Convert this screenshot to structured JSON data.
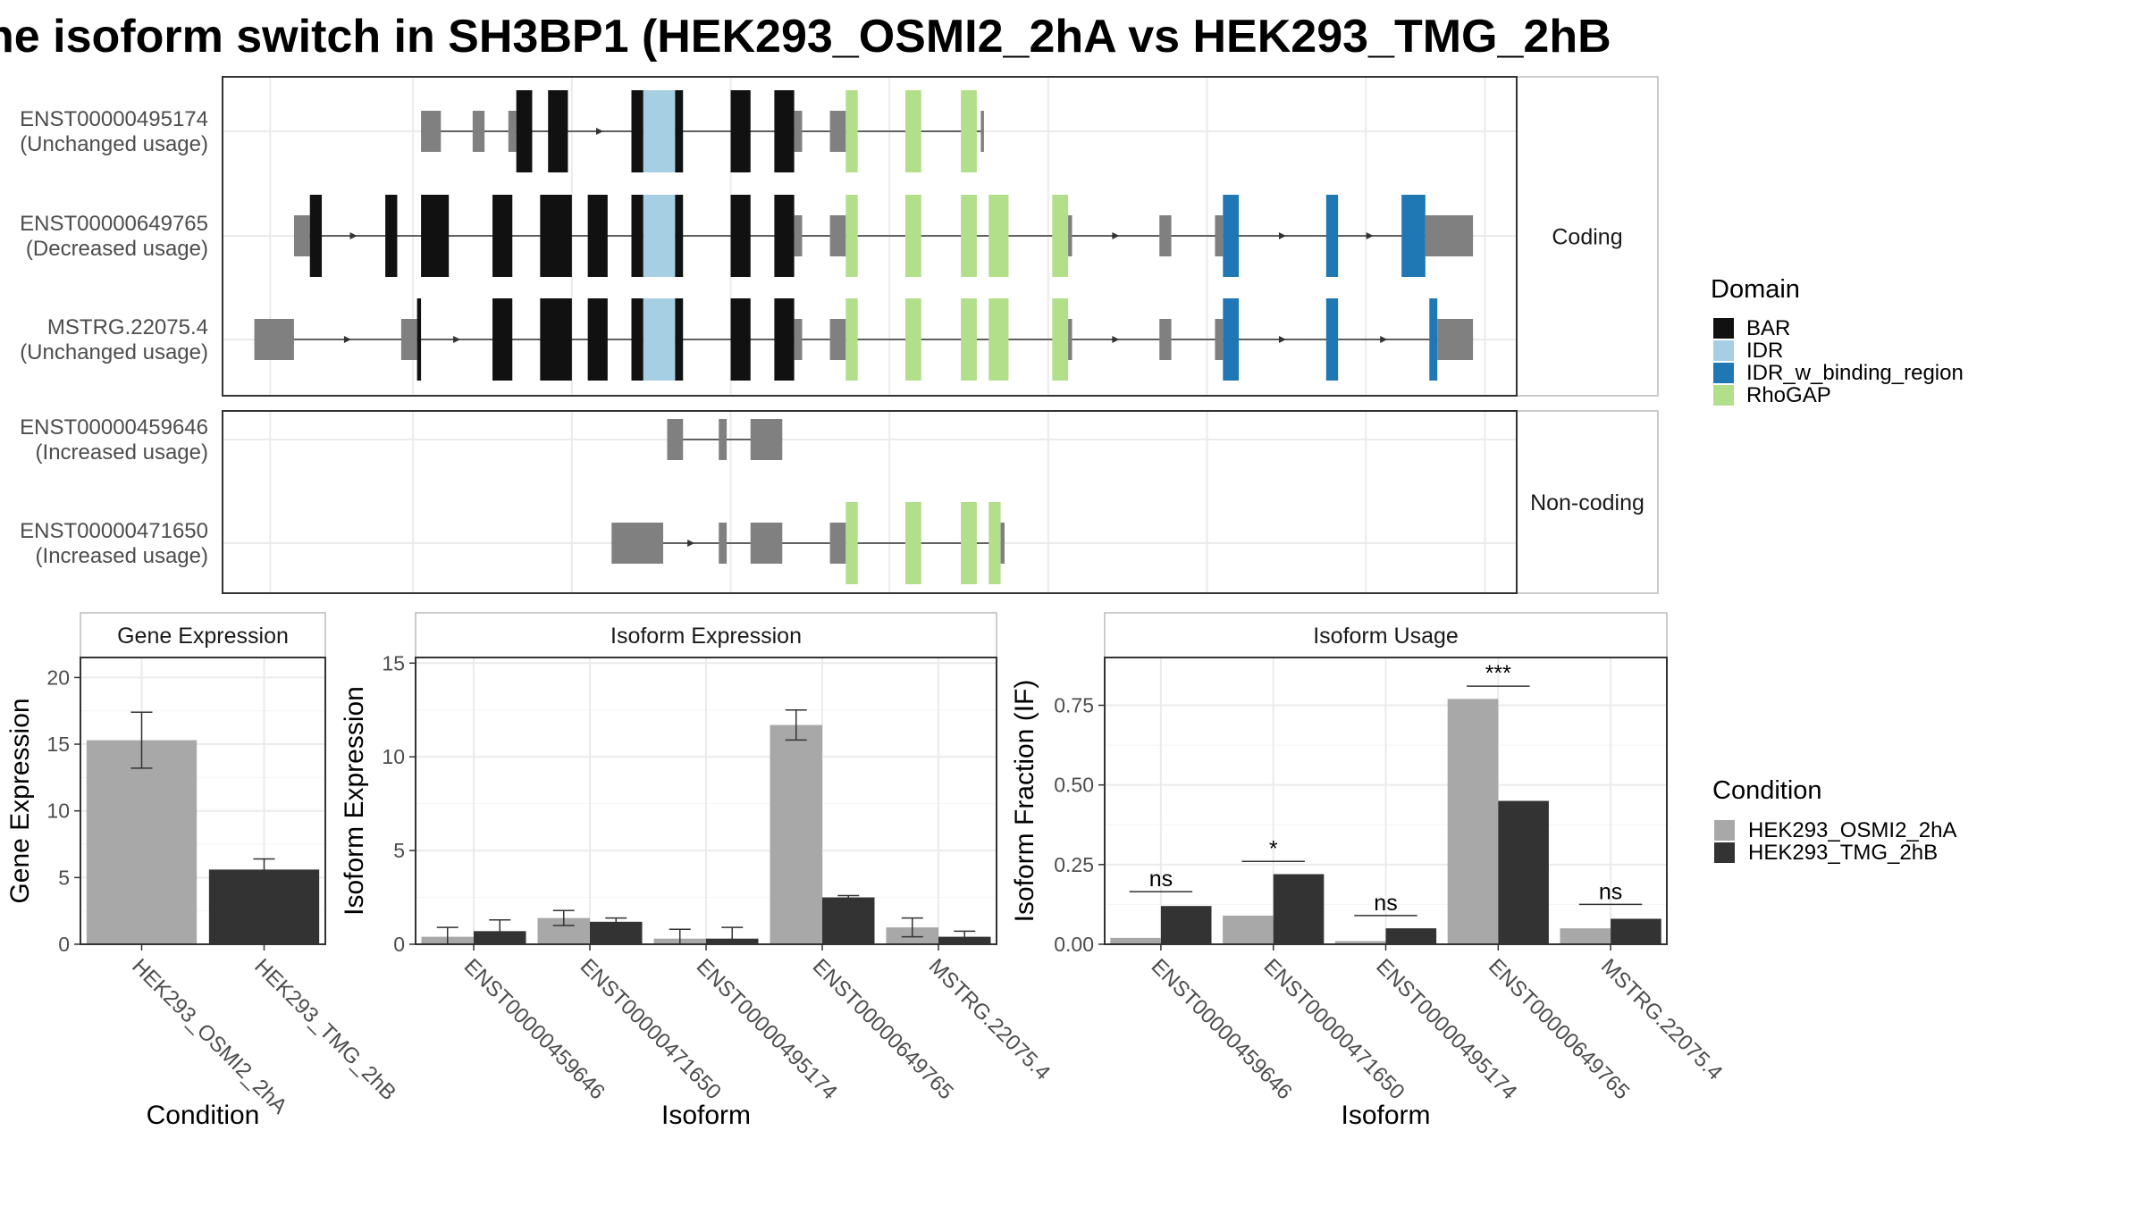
{
  "title": "he isoform switch in SH3BP1 (HEK293_OSMI2_2hA vs HEK293_TMG_2hB",
  "colors": {
    "BAR": "#111111",
    "IDR": "#a6cfe3",
    "IDR_w_binding_region": "#1f78b4",
    "RhoGAP": "#b2df8a",
    "UTR": "#808080",
    "condA": "#a8a8a8",
    "condB": "#333333"
  },
  "structure": {
    "coding_label": "Coding",
    "noncoding_label": "Non-coding",
    "transcripts": [
      {
        "id": "ENST00000495174",
        "usage": "(Unchanged usage)",
        "group": "coding",
        "segments": [
          [
            132,
            137,
            "UTR"
          ],
          [
            145,
            148,
            "UTR"
          ],
          [
            154,
            156,
            "UTR"
          ],
          [
            156,
            160,
            "BAR"
          ],
          [
            164,
            169,
            "BAR"
          ],
          [
            185,
            188,
            "BAR"
          ],
          [
            188,
            196,
            "IDR"
          ],
          [
            196,
            198,
            "BAR"
          ],
          [
            210,
            215,
            "BAR"
          ],
          [
            221,
            226,
            "BAR"
          ],
          [
            226,
            228,
            "UTR"
          ],
          [
            235,
            239,
            "UTR"
          ],
          [
            239,
            242,
            "RhoGAP"
          ],
          [
            254,
            258,
            "RhoGAP"
          ],
          [
            268,
            272,
            "RhoGAP"
          ],
          [
            273,
            273.8,
            "UTR"
          ]
        ]
      },
      {
        "id": "ENST00000649765",
        "usage": "(Decreased usage)",
        "group": "coding",
        "segments": [
          [
            100,
            104,
            "UTR"
          ],
          [
            104,
            107,
            "BAR"
          ],
          [
            123,
            126,
            "BAR"
          ],
          [
            132,
            139,
            "BAR"
          ],
          [
            150,
            155,
            "BAR"
          ],
          [
            162,
            170,
            "BAR"
          ],
          [
            174,
            179,
            "BAR"
          ],
          [
            185,
            188,
            "BAR"
          ],
          [
            188,
            196,
            "IDR"
          ],
          [
            196,
            198,
            "BAR"
          ],
          [
            210,
            215,
            "BAR"
          ],
          [
            221,
            226,
            "BAR"
          ],
          [
            226,
            228,
            "UTR"
          ],
          [
            235,
            239,
            "UTR"
          ],
          [
            239,
            242,
            "RhoGAP"
          ],
          [
            254,
            258,
            "RhoGAP"
          ],
          [
            268,
            272,
            "RhoGAP"
          ],
          [
            275,
            280,
            "RhoGAP"
          ],
          [
            291,
            295,
            "RhoGAP"
          ],
          [
            295,
            296,
            "UTR"
          ],
          [
            318,
            321,
            "UTR"
          ],
          [
            332,
            334,
            "UTR"
          ],
          [
            334,
            338,
            "IDR_w_binding_region"
          ],
          [
            360,
            363,
            "IDR_w_binding_region"
          ],
          [
            379,
            385,
            "IDR_w_binding_region"
          ],
          [
            385,
            397,
            "UTR"
          ]
        ]
      },
      {
        "id": "MSTRG.22075.4",
        "usage": "(Unchanged usage)",
        "group": "coding",
        "segments": [
          [
            90,
            100,
            "UTR"
          ],
          [
            127,
            131,
            "UTR"
          ],
          [
            131,
            132,
            "BAR"
          ],
          [
            150,
            155,
            "BAR"
          ],
          [
            162,
            170,
            "BAR"
          ],
          [
            174,
            179,
            "BAR"
          ],
          [
            185,
            188,
            "BAR"
          ],
          [
            188,
            196,
            "IDR"
          ],
          [
            196,
            198,
            "BAR"
          ],
          [
            210,
            215,
            "BAR"
          ],
          [
            221,
            226,
            "BAR"
          ],
          [
            226,
            228,
            "UTR"
          ],
          [
            235,
            239,
            "UTR"
          ],
          [
            239,
            242,
            "RhoGAP"
          ],
          [
            254,
            258,
            "RhoGAP"
          ],
          [
            268,
            272,
            "RhoGAP"
          ],
          [
            275,
            280,
            "RhoGAP"
          ],
          [
            291,
            295,
            "RhoGAP"
          ],
          [
            295,
            296,
            "UTR"
          ],
          [
            318,
            321,
            "UTR"
          ],
          [
            332,
            334,
            "UTR"
          ],
          [
            334,
            338,
            "IDR_w_binding_region"
          ],
          [
            360,
            363,
            "IDR_w_binding_region"
          ],
          [
            386,
            388,
            "IDR_w_binding_region"
          ],
          [
            388,
            397,
            "UTR"
          ]
        ]
      },
      {
        "id": "ENST00000459646",
        "usage": "(Increased usage)",
        "group": "noncoding",
        "segments": [
          [
            194,
            198,
            "UTR"
          ],
          [
            207,
            209,
            "UTR"
          ],
          [
            215,
            223,
            "UTR"
          ]
        ]
      },
      {
        "id": "ENST00000471650",
        "usage": "(Increased usage)",
        "group": "noncoding",
        "segments": [
          [
            180,
            193,
            "UTR"
          ],
          [
            207,
            209,
            "UTR"
          ],
          [
            215,
            223,
            "UTR"
          ],
          [
            235,
            239,
            "UTR"
          ],
          [
            239,
            242,
            "RhoGAP"
          ],
          [
            254,
            258,
            "RhoGAP"
          ],
          [
            268,
            272,
            "RhoGAP"
          ],
          [
            275,
            278,
            "RhoGAP"
          ],
          [
            278,
            279,
            "UTR"
          ]
        ]
      }
    ]
  },
  "legend_domain": {
    "title": "Domain",
    "items": [
      {
        "label": "BAR",
        "color": "#111111"
      },
      {
        "label": "IDR",
        "color": "#a6cfe3"
      },
      {
        "label": "IDR_w_binding_region",
        "color": "#1f78b4"
      },
      {
        "label": "RhoGAP",
        "color": "#b2df8a"
      }
    ]
  },
  "legend_condition": {
    "title": "Condition",
    "items": [
      {
        "label": "HEK293_OSMI2_2hA",
        "color": "#a8a8a8"
      },
      {
        "label": "HEK293_TMG_2hB",
        "color": "#333333"
      }
    ]
  },
  "chart_data": [
    {
      "type": "bar",
      "title": "Gene Expression",
      "xlabel": "Condition",
      "ylabel": "Gene Expression",
      "ylim": [
        0,
        21.5
      ],
      "yticks": [
        0,
        5,
        10,
        15,
        20
      ],
      "ytick_labels": [
        "0",
        "5",
        "10",
        "15",
        "20"
      ],
      "categories": [
        "HEK293_OSMI2_2hA",
        "HEK293_TMG_2hB"
      ],
      "values": [
        15.3,
        5.6
      ],
      "error": [
        [
          13.2,
          17.4
        ],
        [
          4.8,
          6.4
        ]
      ]
    },
    {
      "type": "bar",
      "title": "Isoform Expression",
      "xlabel": "Isoform",
      "ylabel": "Isoform Expression",
      "ylim": [
        0,
        15.3
      ],
      "yticks": [
        0,
        5,
        10,
        15
      ],
      "ytick_labels": [
        "0",
        "5",
        "10",
        "15"
      ],
      "categories": [
        "ENST00000459646",
        "ENST00000471650",
        "ENST00000495174",
        "ENST00000649765",
        "MSTRG.22075.4"
      ],
      "series": [
        {
          "name": "HEK293_OSMI2_2hA",
          "values": [
            0.4,
            1.4,
            0.3,
            11.7,
            0.9
          ],
          "error": [
            [
              0.0,
              0.9
            ],
            [
              1.0,
              1.8
            ],
            [
              0.0,
              0.8
            ],
            [
              10.9,
              12.5
            ],
            [
              0.4,
              1.4
            ]
          ]
        },
        {
          "name": "HEK293_TMG_2hB",
          "values": [
            0.7,
            1.2,
            0.3,
            2.5,
            0.4
          ],
          "error": [
            [
              0.3,
              1.3
            ],
            [
              1.0,
              1.4
            ],
            [
              0.0,
              0.9
            ],
            [
              2.4,
              2.6
            ],
            [
              0.2,
              0.7
            ]
          ]
        }
      ]
    },
    {
      "type": "bar",
      "title": "Isoform Usage",
      "xlabel": "Isoform",
      "ylabel": "Isoform Fraction (IF)",
      "ylim": [
        0,
        0.9
      ],
      "yticks": [
        0,
        0.25,
        0.5,
        0.75
      ],
      "ytick_labels": [
        "0.00",
        "0.25",
        "0.50",
        "0.75"
      ],
      "categories": [
        "ENST00000459646",
        "ENST00000471650",
        "ENST00000495174",
        "ENST00000649765",
        "MSTRG.22075.4"
      ],
      "series": [
        {
          "name": "HEK293_OSMI2_2hA",
          "values": [
            0.02,
            0.09,
            0.01,
            0.77,
            0.05
          ]
        },
        {
          "name": "HEK293_TMG_2hB",
          "values": [
            0.12,
            0.22,
            0.05,
            0.45,
            0.08
          ]
        }
      ],
      "significance": [
        "ns",
        "*",
        "ns",
        "***",
        "ns"
      ],
      "significance_y": [
        0.165,
        0.26,
        0.09,
        0.81,
        0.125
      ]
    }
  ]
}
